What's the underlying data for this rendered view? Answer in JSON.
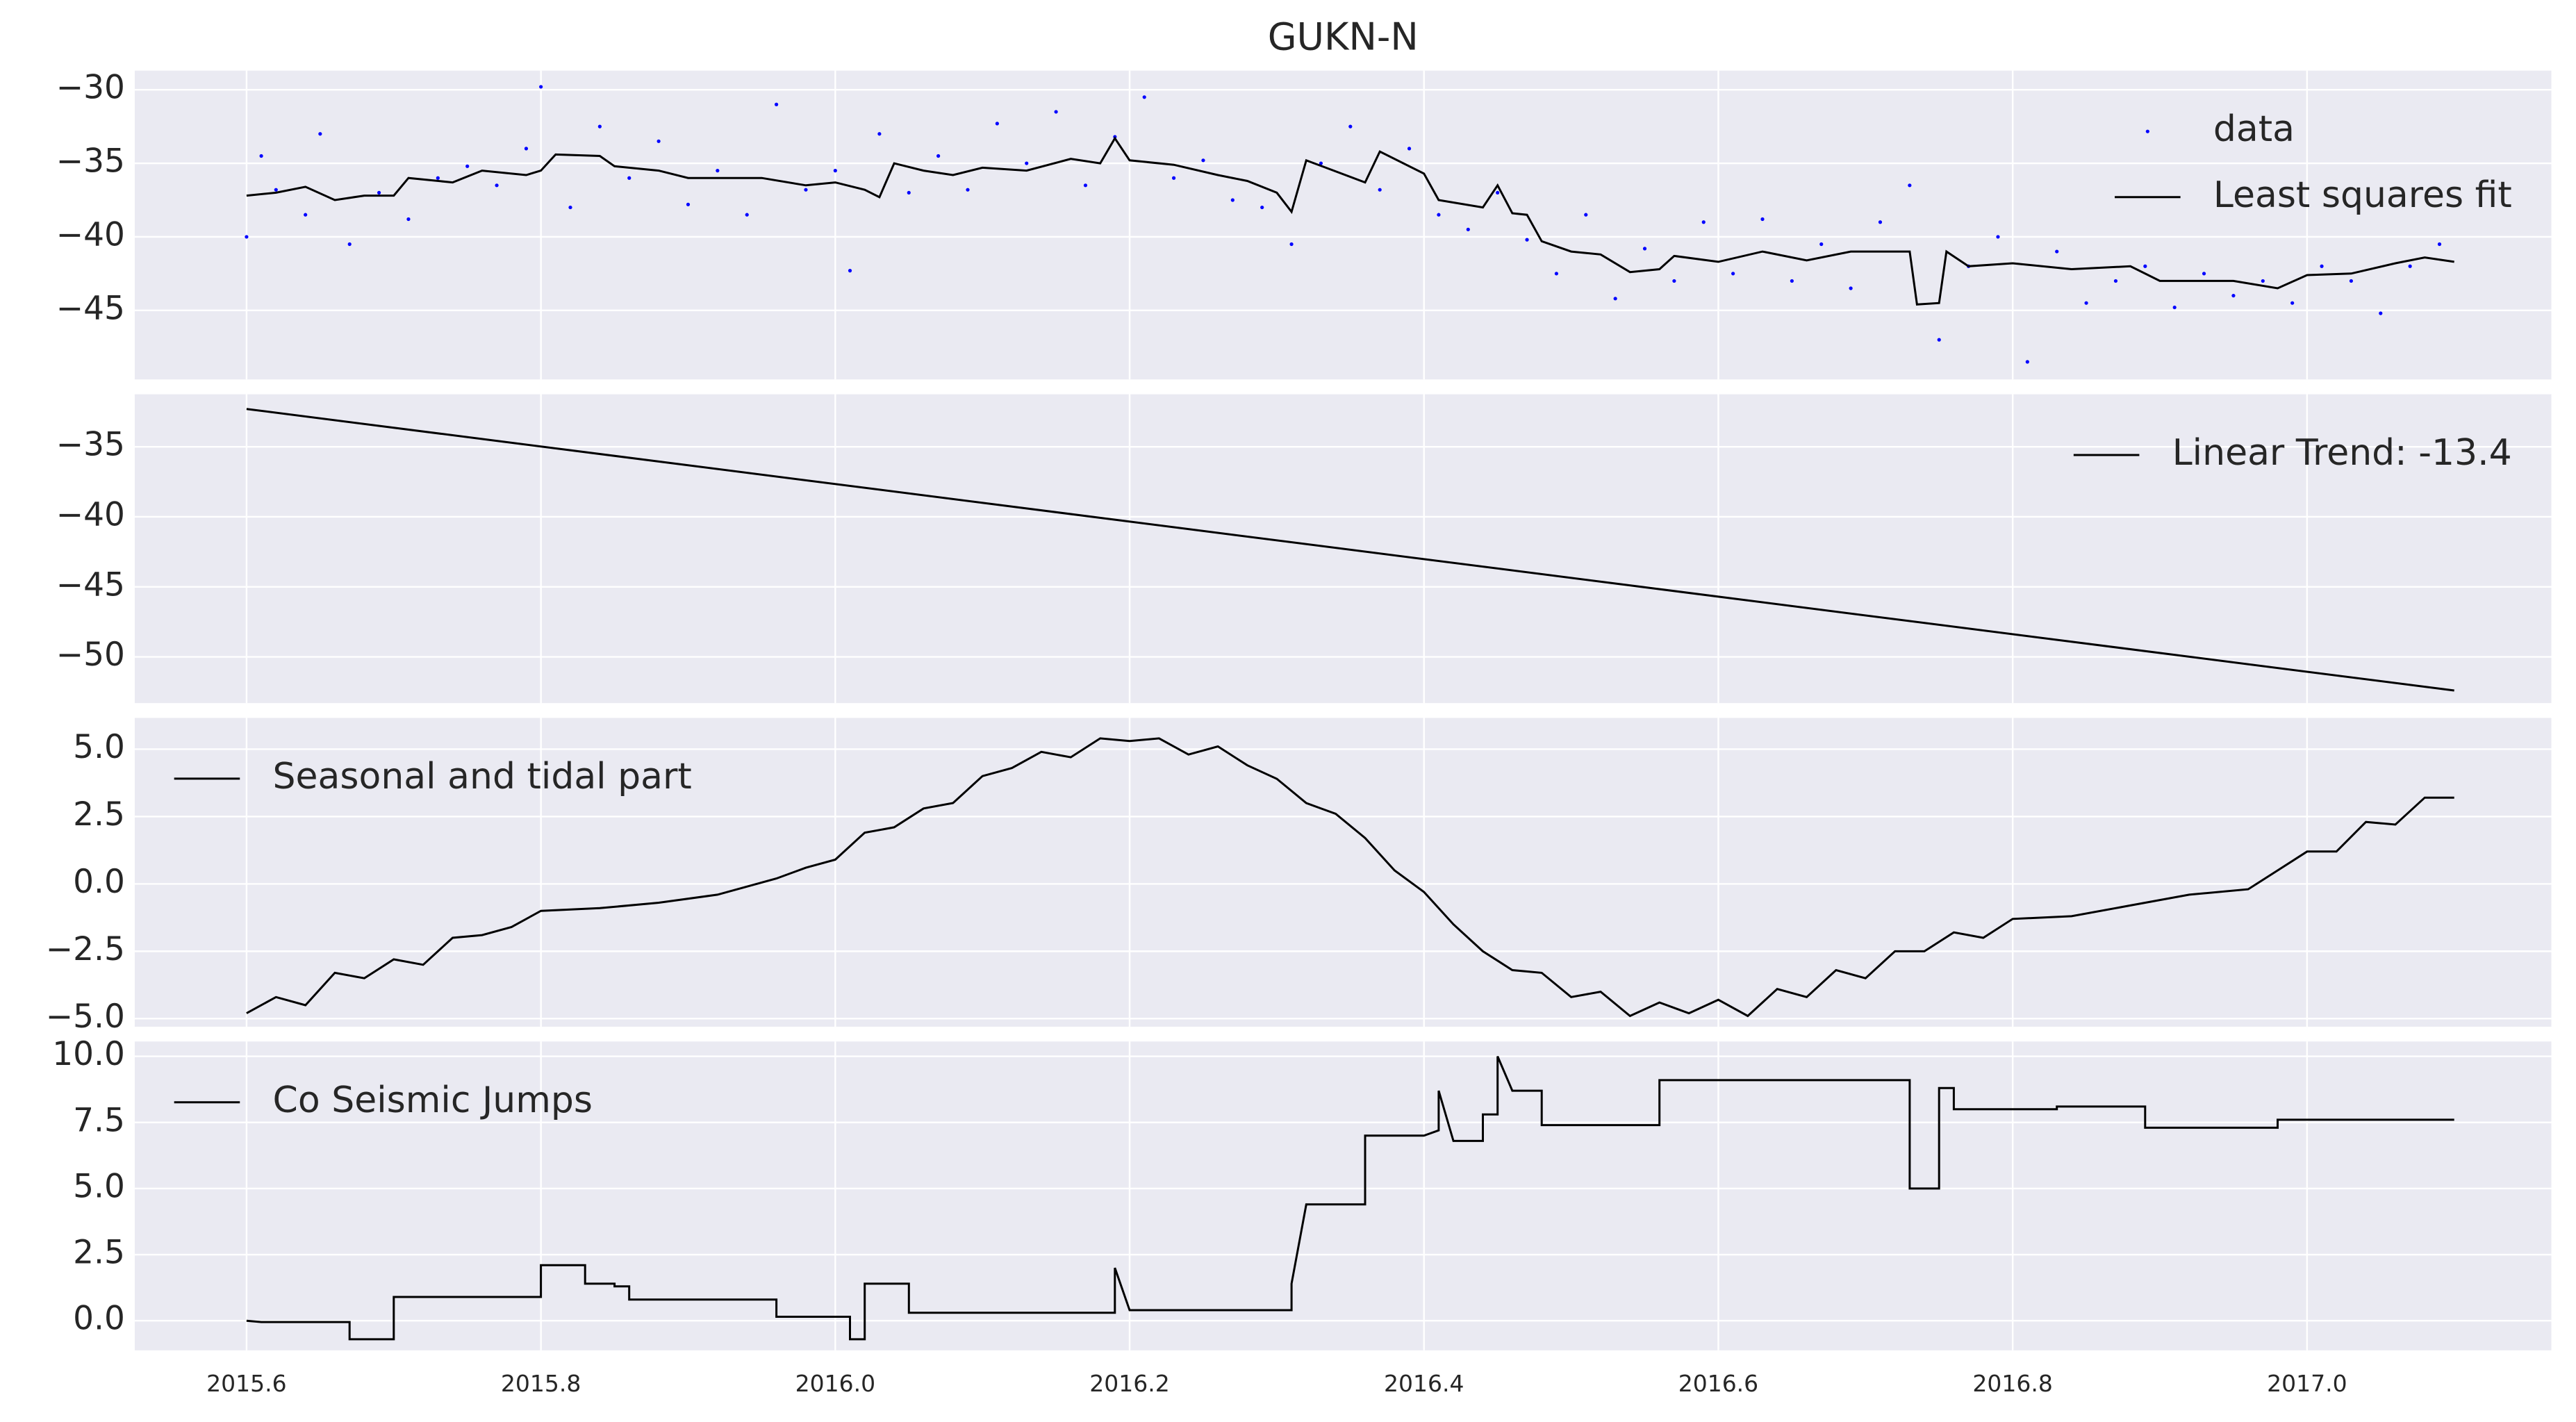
{
  "chart_data": [
    {
      "type": "line",
      "title": "GUKN-N",
      "legend": "upper right",
      "grid": true,
      "background": "#eaeaf2",
      "xlim": [
        2015.524,
        2017.166
      ],
      "ylim": [
        -49.7,
        -28.7
      ],
      "yticks": [
        {
          "value": -45,
          "label": "−45"
        },
        {
          "value": -40,
          "label": "−40"
        },
        {
          "value": -35,
          "label": "−35"
        },
        {
          "value": -30,
          "label": "−30"
        }
      ],
      "series": [
        {
          "name": "data",
          "color": "#0000ff",
          "marker": "dot",
          "linestyle": "none",
          "x": [
            2015.6,
            2015.61,
            2015.62,
            2015.64,
            2015.65,
            2015.67,
            2015.69,
            2015.71,
            2015.73,
            2015.75,
            2015.77,
            2015.79,
            2015.8,
            2015.82,
            2015.84,
            2015.86,
            2015.88,
            2015.9,
            2015.92,
            2015.94,
            2015.96,
            2015.98,
            2016.0,
            2016.01,
            2016.03,
            2016.05,
            2016.07,
            2016.09,
            2016.11,
            2016.13,
            2016.15,
            2016.17,
            2016.19,
            2016.21,
            2016.23,
            2016.25,
            2016.27,
            2016.29,
            2016.31,
            2016.33,
            2016.35,
            2016.37,
            2016.39,
            2016.41,
            2016.43,
            2016.45,
            2016.47,
            2016.49,
            2016.51,
            2016.53,
            2016.55,
            2016.57,
            2016.59,
            2016.61,
            2016.63,
            2016.65,
            2016.67,
            2016.69,
            2016.71,
            2016.73,
            2016.75,
            2016.77,
            2016.79,
            2016.81,
            2016.83,
            2016.85,
            2016.87,
            2016.89,
            2016.91,
            2016.93,
            2016.95,
            2016.97,
            2016.99,
            2017.01,
            2017.03,
            2017.05,
            2017.07,
            2017.09
          ],
          "values": [
            -40.0,
            -34.5,
            -36.8,
            -38.5,
            -33.0,
            -40.5,
            -37.0,
            -38.8,
            -36.0,
            -35.2,
            -36.5,
            -34.0,
            -29.8,
            -38.0,
            -32.5,
            -36.0,
            -33.5,
            -37.8,
            -35.5,
            -38.5,
            -31.0,
            -36.8,
            -35.5,
            -42.3,
            -33.0,
            -37.0,
            -34.5,
            -36.8,
            -32.3,
            -35.0,
            -31.5,
            -36.5,
            -33.2,
            -30.5,
            -36.0,
            -34.8,
            -37.5,
            -38.0,
            -40.5,
            -35.0,
            -32.5,
            -36.8,
            -34.0,
            -38.5,
            -39.5,
            -37.0,
            -40.2,
            -42.5,
            -38.5,
            -44.2,
            -40.8,
            -43.0,
            -39.0,
            -42.5,
            -38.8,
            -43.0,
            -40.5,
            -43.5,
            -39.0,
            -36.5,
            -47.0,
            -42.0,
            -40.0,
            -48.5,
            -41.0,
            -44.5,
            -43.0,
            -42.0,
            -44.8,
            -42.5,
            -44.0,
            -43.0,
            -44.5,
            -42.0,
            -43.0,
            -45.2,
            -42.0,
            -40.5
          ]
        },
        {
          "name": "Least squares fit",
          "color": "#000000",
          "x": [
            2015.6,
            2015.62,
            2015.64,
            2015.66,
            2015.68,
            2015.7,
            2015.71,
            2015.74,
            2015.76,
            2015.79,
            2015.8,
            2015.81,
            2015.84,
            2015.85,
            2015.88,
            2015.9,
            2015.95,
            2015.98,
            2016.0,
            2016.02,
            2016.03,
            2016.04,
            2016.06,
            2016.08,
            2016.1,
            2016.13,
            2016.16,
            2016.18,
            2016.19,
            2016.2,
            2016.23,
            2016.26,
            2016.28,
            2016.3,
            2016.31,
            2016.32,
            2016.36,
            2016.37,
            2016.4,
            2016.41,
            2016.44,
            2016.45,
            2016.46,
            2016.47,
            2016.48,
            2016.5,
            2016.52,
            2016.54,
            2016.56,
            2016.57,
            2016.6,
            2016.63,
            2016.66,
            2016.69,
            2016.72,
            2016.73,
            2016.735,
            2016.75,
            2016.755,
            2016.77,
            2016.8,
            2016.84,
            2016.88,
            2016.9,
            2016.95,
            2016.98,
            2017.0,
            2017.03,
            2017.06,
            2017.08,
            2017.1
          ],
          "values": [
            -37.2,
            -37.0,
            -36.6,
            -37.5,
            -37.2,
            -37.2,
            -36.0,
            -36.3,
            -35.5,
            -35.8,
            -35.5,
            -34.4,
            -34.5,
            -35.2,
            -35.5,
            -36.0,
            -36.0,
            -36.5,
            -36.3,
            -36.8,
            -37.3,
            -35.0,
            -35.5,
            -35.8,
            -35.3,
            -35.5,
            -34.7,
            -35.0,
            -33.3,
            -34.8,
            -35.1,
            -35.8,
            -36.2,
            -37.0,
            -38.3,
            -34.8,
            -36.3,
            -34.2,
            -35.7,
            -37.5,
            -38.0,
            -36.5,
            -38.4,
            -38.5,
            -40.3,
            -41.0,
            -41.2,
            -42.4,
            -42.2,
            -41.3,
            -41.7,
            -41.0,
            -41.6,
            -41.0,
            -41.0,
            -41.0,
            -44.6,
            -44.5,
            -41.0,
            -42.0,
            -41.8,
            -42.2,
            -42.0,
            -43.0,
            -43.0,
            -43.5,
            -42.6,
            -42.5,
            -41.8,
            -41.4,
            -41.7
          ]
        }
      ]
    },
    {
      "type": "line",
      "legend": "upper right",
      "grid": true,
      "background": "#eaeaf2",
      "xlim": [
        2015.524,
        2017.166
      ],
      "ylim": [
        -53.3,
        -31.25
      ],
      "yticks": [
        {
          "value": -50,
          "label": "−50"
        },
        {
          "value": -45,
          "label": "−45"
        },
        {
          "value": -40,
          "label": "−40"
        },
        {
          "value": -35,
          "label": "−35"
        }
      ],
      "series": [
        {
          "name": "Linear Trend: -13.4",
          "color": "#000000",
          "x": [
            2015.6,
            2017.1
          ],
          "values": [
            -32.3,
            -52.4
          ]
        }
      ]
    },
    {
      "type": "line",
      "legend": "upper left",
      "grid": true,
      "background": "#eaeaf2",
      "xlim": [
        2015.524,
        2017.166
      ],
      "ylim": [
        -5.3,
        6.16
      ],
      "yticks": [
        {
          "value": -5,
          "label": "−5.0"
        },
        {
          "value": -2.5,
          "label": "−2.5"
        },
        {
          "value": 0,
          "label": "0.0"
        },
        2.5,
        {
          "value": 5,
          "label": "5.0"
        }
      ],
      "series": [
        {
          "name": "Seasonal and tidal part",
          "color": "#000000",
          "x": [
            2015.6,
            2015.62,
            2015.64,
            2015.66,
            2015.68,
            2015.7,
            2015.72,
            2015.74,
            2015.76,
            2015.78,
            2015.8,
            2015.84,
            2015.88,
            2015.92,
            2015.96,
            2015.98,
            2016.0,
            2016.02,
            2016.04,
            2016.06,
            2016.08,
            2016.1,
            2016.12,
            2016.14,
            2016.16,
            2016.18,
            2016.2,
            2016.22,
            2016.24,
            2016.26,
            2016.28,
            2016.3,
            2016.32,
            2016.34,
            2016.36,
            2016.38,
            2016.4,
            2016.42,
            2016.44,
            2016.46,
            2016.48,
            2016.5,
            2016.52,
            2016.54,
            2016.56,
            2016.58,
            2016.6,
            2016.62,
            2016.64,
            2016.66,
            2016.68,
            2016.7,
            2016.72,
            2016.74,
            2016.76,
            2016.78,
            2016.8,
            2016.84,
            2016.88,
            2016.92,
            2016.96,
            2016.98,
            2017.0,
            2017.02,
            2017.04,
            2017.06,
            2017.08,
            2017.1
          ],
          "values": [
            -4.8,
            -4.2,
            -4.5,
            -3.3,
            -3.5,
            -2.8,
            -3.0,
            -2.0,
            -1.9,
            -1.6,
            -1.0,
            -0.9,
            -0.7,
            -0.4,
            0.2,
            0.6,
            0.9,
            1.9,
            2.1,
            2.8,
            3.0,
            4.0,
            4.3,
            4.9,
            4.7,
            5.4,
            5.3,
            5.4,
            4.8,
            5.1,
            4.4,
            3.9,
            3.0,
            2.6,
            1.7,
            0.5,
            -0.3,
            -1.5,
            -2.5,
            -3.2,
            -3.3,
            -4.2,
            -4.0,
            -4.9,
            -4.4,
            -4.8,
            -4.3,
            -4.9,
            -3.9,
            -4.2,
            -3.2,
            -3.5,
            -2.5,
            -2.5,
            -1.8,
            -2.0,
            -1.3,
            -1.2,
            -0.8,
            -0.4,
            -0.2,
            0.5,
            1.2,
            1.2,
            2.3,
            2.2,
            3.2,
            3.2
          ]
        }
      ]
    },
    {
      "type": "line",
      "legend": "upper left",
      "grid": true,
      "background": "#eaeaf2",
      "xlim": [
        2015.524,
        2017.166
      ],
      "ylim": [
        -1.12,
        10.56
      ],
      "yticks": [
        {
          "value": 0,
          "label": "0.0"
        },
        2.5,
        {
          "value": 5,
          "label": "5.0"
        },
        7.5,
        {
          "value": 10,
          "label": "10.0"
        }
      ],
      "xticks": [
        2015.6,
        2015.8,
        {
          "value": 2016,
          "label": "2016.0"
        },
        2016.2,
        2016.4,
        2016.6,
        2016.8,
        {
          "value": 2017,
          "label": "2017.0"
        }
      ],
      "series": [
        {
          "name": "Co Seismic Jumps",
          "color": "#000000",
          "x": [
            2015.6,
            2015.61,
            2015.67,
            2015.67,
            2015.7,
            2015.7,
            2015.8,
            2015.8,
            2015.83,
            2015.83,
            2015.85,
            2015.85,
            2015.86,
            2015.86,
            2015.96,
            2015.96,
            2016.01,
            2016.01,
            2016.02,
            2016.02,
            2016.05,
            2016.05,
            2016.09,
            2016.19,
            2016.19,
            2016.2,
            2016.31,
            2016.31,
            2016.32,
            2016.36,
            2016.36,
            2016.4,
            2016.41,
            2016.41,
            2016.42,
            2016.44,
            2016.44,
            2016.45,
            2016.45,
            2016.46,
            2016.48,
            2016.48,
            2016.56,
            2016.56,
            2016.73,
            2016.73,
            2016.75,
            2016.75,
            2016.76,
            2016.76,
            2016.83,
            2016.83,
            2016.89,
            2016.89,
            2016.98,
            2016.98,
            2017.1
          ],
          "values": [
            0,
            -0.05,
            -0.05,
            -0.7,
            -0.7,
            0.9,
            0.9,
            2.1,
            2.1,
            1.4,
            1.4,
            1.3,
            1.3,
            0.8,
            0.8,
            0.15,
            0.15,
            -0.7,
            -0.7,
            1.4,
            1.4,
            0.3,
            0.3,
            0.3,
            2.0,
            0.4,
            0.4,
            1.4,
            4.4,
            4.4,
            7.0,
            7.0,
            7.2,
            8.7,
            6.8,
            6.8,
            7.8,
            7.8,
            10.0,
            8.7,
            8.7,
            7.4,
            7.4,
            9.1,
            9.1,
            5.0,
            5.0,
            8.8,
            8.8,
            8.0,
            8.0,
            8.1,
            8.1,
            7.3,
            7.3,
            7.6,
            7.6
          ]
        }
      ]
    }
  ]
}
